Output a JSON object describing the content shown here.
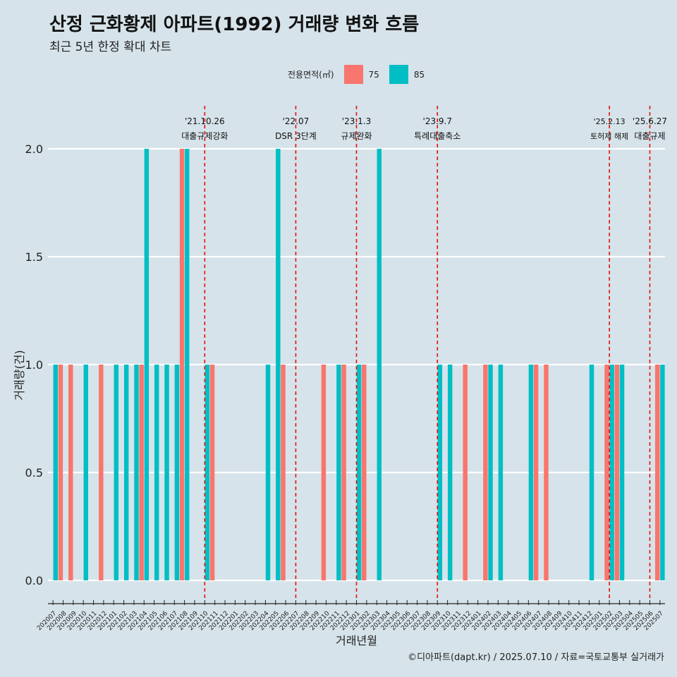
{
  "title": "산정 근화황제 아파트(1992) 거래량 변화 흐름",
  "subtitle": "최근 5년 한정 확대 차트",
  "caption": "©디아파트(dapt.kr) / 2025.07.10 / 자료=국토교통부 실거래가",
  "legend": {
    "title": "전용면적(㎡)",
    "items": [
      {
        "label": "75",
        "color": "#f8766d"
      },
      {
        "label": "85",
        "color": "#00bfc4"
      }
    ]
  },
  "chart_data": {
    "type": "bar",
    "xlabel": "거래년월",
    "ylabel": "거래량(건)",
    "ylim": [
      0,
      2
    ],
    "yticks": [
      "0.0",
      "0.5",
      "1.0",
      "1.5",
      "2.0"
    ],
    "categories": [
      "202007",
      "202008",
      "202009",
      "202010",
      "202011",
      "202012",
      "202101",
      "202102",
      "202103",
      "202104",
      "202105",
      "202106",
      "202107",
      "202108",
      "202109",
      "202110",
      "202111",
      "202112",
      "202201",
      "202202",
      "202203",
      "202204",
      "202205",
      "202206",
      "202207",
      "202208",
      "202209",
      "202210",
      "202211",
      "202212",
      "202301",
      "202302",
      "202303",
      "202304",
      "202305",
      "202306",
      "202307",
      "202308",
      "202309",
      "202310",
      "202311",
      "202312",
      "202401",
      "202402",
      "202403",
      "202404",
      "202405",
      "202406",
      "202407",
      "202408",
      "202409",
      "202410",
      "202411",
      "202412",
      "202501",
      "202502",
      "202503",
      "202504",
      "202505",
      "202506",
      "202507"
    ],
    "series": [
      {
        "name": "75",
        "color": "#f8766d",
        "values": [
          0,
          1,
          1,
          0,
          0,
          1,
          0,
          0,
          0,
          1,
          0,
          0,
          0,
          2,
          0,
          0,
          1,
          0,
          0,
          0,
          0,
          0,
          0,
          1,
          0,
          0,
          0,
          1,
          0,
          1,
          0,
          1,
          0,
          0,
          0,
          0,
          0,
          0,
          0,
          0,
          0,
          1,
          0,
          1,
          0,
          0,
          0,
          0,
          1,
          1,
          0,
          0,
          0,
          0,
          0,
          1,
          1,
          0,
          0,
          0,
          1
        ]
      },
      {
        "name": "85",
        "color": "#00bfc4",
        "values": [
          1,
          0,
          0,
          1,
          0,
          0,
          1,
          1,
          1,
          2,
          1,
          1,
          1,
          2,
          0,
          1,
          0,
          0,
          0,
          0,
          0,
          1,
          2,
          0,
          0,
          0,
          0,
          0,
          1,
          0,
          1,
          0,
          2,
          0,
          0,
          0,
          0,
          0,
          1,
          1,
          0,
          0,
          0,
          1,
          1,
          0,
          0,
          1,
          0,
          0,
          0,
          0,
          0,
          1,
          0,
          1,
          1,
          0,
          0,
          0,
          1
        ]
      }
    ],
    "events": [
      {
        "x": "202110",
        "date": "'21.10.26",
        "label": "대출규제강화"
      },
      {
        "x": "202207",
        "date": "'22.07",
        "label": "DSR 3단계"
      },
      {
        "x": "202301",
        "date": "'23.1.3",
        "label": "규제완화"
      },
      {
        "x": "202309",
        "date": "'23.9.7",
        "label": "특례대출축소"
      },
      {
        "x": "202502",
        "date": "'25.2.13",
        "label": "토허제 해제"
      },
      {
        "x": "202506",
        "date": "'25.6.27",
        "label": "대출규제"
      }
    ]
  }
}
